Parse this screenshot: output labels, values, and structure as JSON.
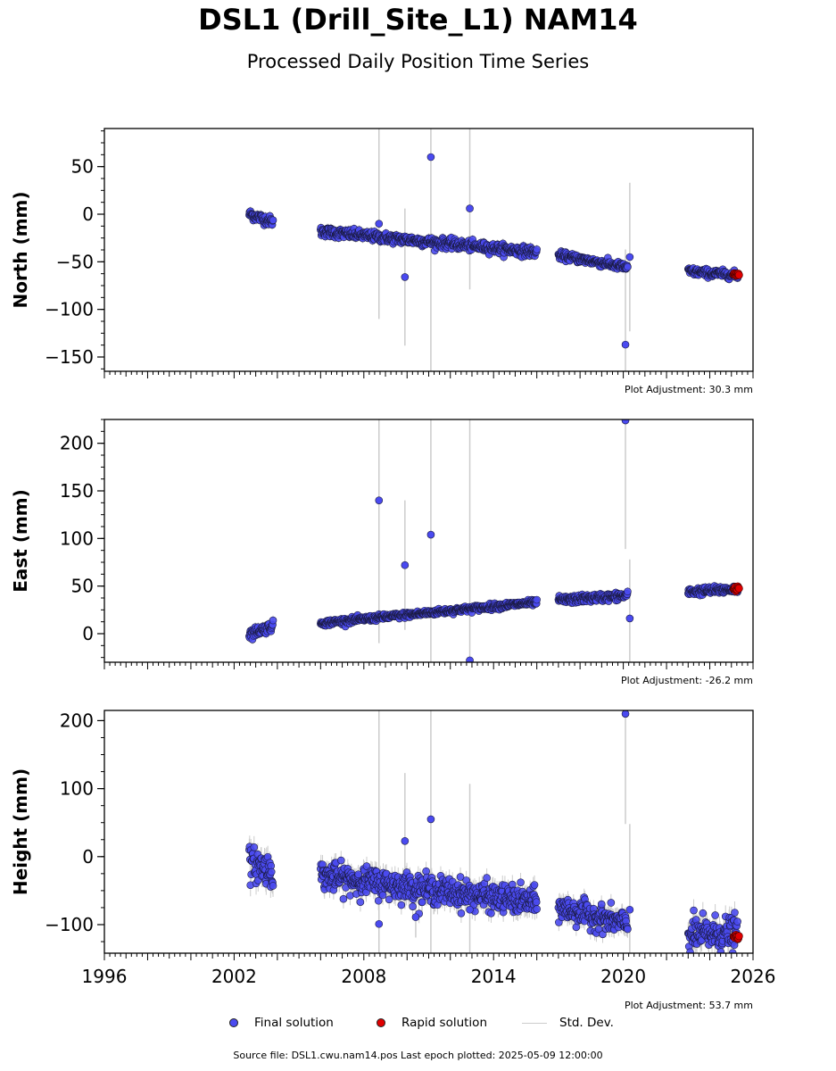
{
  "title": "DSL1 (Drill_Site_L1) NAM14",
  "subtitle": "Processed Daily Position Time Series",
  "footer": "Source file: DSL1.cwu.nam14.pos  Last epoch plotted: 2025-05-09 12:00:00",
  "legend": {
    "final_label": "Final solution",
    "rapid_label": "Rapid solution",
    "std_label": "Std. Dev.",
    "final_color": "#4a4af0",
    "rapid_color": "#e00000",
    "std_color": "#cccccc"
  },
  "chart_data": [
    {
      "type": "scatter",
      "component": "north",
      "ylabel": "North (mm)",
      "adjustment": "Plot Adjustment: 30.3 mm",
      "xlim": [
        1996,
        2026
      ],
      "ylim": [
        -165,
        90
      ],
      "yticks": [
        50,
        0,
        -50,
        -100,
        -150
      ],
      "ytick_labels": [
        "50",
        "0",
        "−50",
        "−100",
        "−150"
      ],
      "segments": [
        {
          "start": 2002.7,
          "end": 2003.8,
          "y0": 0,
          "y1": -8,
          "noise": 2.5
        },
        {
          "start": 2006.0,
          "end": 2016.0,
          "y0": -18,
          "y1": -40,
          "noise": 2.5
        },
        {
          "start": 2017.0,
          "end": 2020.2,
          "y0": -43,
          "y1": -56,
          "noise": 2.0
        },
        {
          "start": 2023.0,
          "end": 2025.3,
          "y0": -60,
          "y1": -64,
          "noise": 2.0
        }
      ],
      "outliers": [
        {
          "x": 2008.7,
          "y": -10,
          "err": 100
        },
        {
          "x": 2009.9,
          "y": -66,
          "err": 72
        },
        {
          "x": 2011.1,
          "y": 60,
          "err": 300
        },
        {
          "x": 2012.9,
          "y": 6,
          "err": 85
        },
        {
          "x": 2020.1,
          "y": -137,
          "err": 100
        },
        {
          "x": 2020.3,
          "y": -45,
          "err": 78
        }
      ],
      "rapid": {
        "start": 2025.1,
        "end": 2025.35,
        "y": -63
      }
    },
    {
      "type": "scatter",
      "component": "east",
      "ylabel": "East (mm)",
      "adjustment": "Plot Adjustment: -26.2 mm",
      "xlim": [
        1996,
        2026
      ],
      "ylim": [
        -30,
        225
      ],
      "yticks": [
        200,
        150,
        100,
        50,
        0
      ],
      "ytick_labels": [
        "200",
        "150",
        "100",
        "50",
        "0"
      ],
      "segments": [
        {
          "start": 2002.7,
          "end": 2003.8,
          "y0": 0,
          "y1": 8,
          "noise": 2.5
        },
        {
          "start": 2006.0,
          "end": 2016.0,
          "y0": 11,
          "y1": 33,
          "noise": 1.5
        },
        {
          "start": 2017.0,
          "end": 2020.2,
          "y0": 35,
          "y1": 40,
          "noise": 2.0
        },
        {
          "start": 2023.0,
          "end": 2025.3,
          "y0": 44,
          "y1": 47,
          "noise": 2.0
        }
      ],
      "outliers": [
        {
          "x": 2008.7,
          "y": 140,
          "err": 150
        },
        {
          "x": 2009.9,
          "y": 72,
          "err": 68
        },
        {
          "x": 2011.1,
          "y": 104,
          "err": 200
        },
        {
          "x": 2012.9,
          "y": -28,
          "err": 280
        },
        {
          "x": 2020.1,
          "y": 224,
          "err": 135
        },
        {
          "x": 2020.3,
          "y": 16,
          "err": 62
        }
      ],
      "rapid": {
        "start": 2025.1,
        "end": 2025.35,
        "y": 48
      }
    },
    {
      "type": "scatter",
      "component": "height",
      "ylabel": "Height (mm)",
      "adjustment": "Plot Adjustment: 53.7 mm",
      "xlim": [
        1996,
        2026
      ],
      "ylim": [
        -142,
        215
      ],
      "yticks": [
        200,
        100,
        0,
        -100
      ],
      "ytick_labels": [
        "200",
        "100",
        "0",
        "−100"
      ],
      "xticks": [
        1996,
        2002,
        2008,
        2014,
        2020,
        2026
      ],
      "xtick_labels": [
        "1996",
        "2002",
        "2008",
        "2014",
        "2020",
        "2026"
      ],
      "segments": [
        {
          "start": 2002.7,
          "end": 2003.8,
          "y0": -10,
          "y1": -20,
          "noise": 12
        },
        {
          "start": 2006.0,
          "end": 2016.0,
          "y0": -28,
          "y1": -68,
          "noise": 10
        },
        {
          "start": 2017.0,
          "end": 2020.2,
          "y0": -75,
          "y1": -100,
          "noise": 9
        },
        {
          "start": 2023.0,
          "end": 2025.3,
          "y0": -115,
          "y1": -112,
          "noise": 12
        }
      ],
      "outliers": [
        {
          "x": 2008.7,
          "y": -99,
          "err": 380
        },
        {
          "x": 2009.9,
          "y": 23,
          "err": 100
        },
        {
          "x": 2010.4,
          "y": -89,
          "err": 30
        },
        {
          "x": 2011.1,
          "y": 55,
          "err": 330
        },
        {
          "x": 2012.9,
          "y": -78,
          "err": 185
        },
        {
          "x": 2020.1,
          "y": 210,
          "err": 162
        },
        {
          "x": 2020.3,
          "y": -78,
          "err": 126
        }
      ],
      "rapid": {
        "start": 2025.1,
        "end": 2025.35,
        "y": -118
      }
    }
  ]
}
